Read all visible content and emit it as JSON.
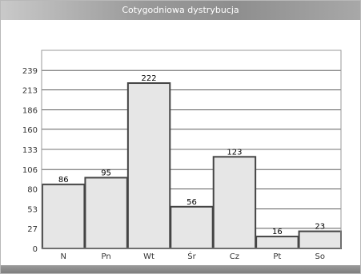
{
  "window": {
    "title": "Cotygodniowa dystrybucja"
  },
  "chart_data": {
    "type": "bar",
    "title": "Cotygodniowa dystrybucja",
    "categories": [
      "N",
      "Pn",
      "Wt",
      "Śr",
      "Cz",
      "Pt",
      "So"
    ],
    "values": [
      86,
      95,
      222,
      56,
      123,
      16,
      23
    ],
    "yticks": [
      0,
      27,
      53,
      80,
      106,
      133,
      160,
      186,
      213,
      239
    ],
    "ylim": [
      0,
      266
    ],
    "grid": true,
    "bar_fill": "#e6e6e6",
    "bar_stroke": "#444444",
    "grid_color": "#444444",
    "title_bar_text_color": "#ffffff"
  }
}
